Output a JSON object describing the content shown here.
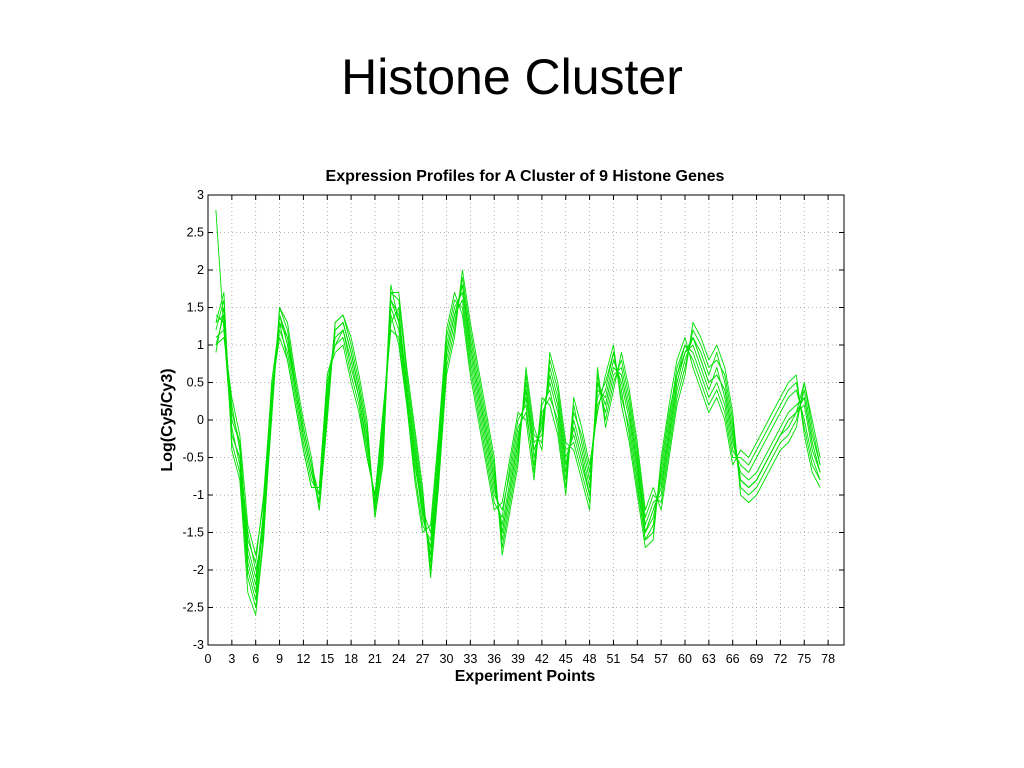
{
  "slide": {
    "title": "Histone Cluster"
  },
  "chart_data": {
    "type": "line",
    "title": "Expression Profiles for A Cluster of 9 Histone Genes",
    "xlabel": "Experiment Points",
    "ylabel": "Log(Cy5/Cy3)",
    "xlim": [
      0,
      80
    ],
    "ylim": [
      -3,
      3
    ],
    "xticks": [
      0,
      3,
      6,
      9,
      12,
      15,
      18,
      21,
      24,
      27,
      30,
      33,
      36,
      39,
      42,
      45,
      48,
      51,
      54,
      57,
      60,
      63,
      66,
      69,
      72,
      75,
      78
    ],
    "yticks": [
      -3,
      -2.5,
      -2,
      -1.5,
      -1,
      -0.5,
      0,
      0.5,
      1,
      1.5,
      2,
      2.5,
      3
    ],
    "grid": true,
    "line_color": "#00e000",
    "x": [
      1,
      2,
      3,
      4,
      5,
      6,
      7,
      8,
      9,
      10,
      11,
      12,
      13,
      14,
      15,
      16,
      17,
      18,
      19,
      20,
      21,
      22,
      23,
      24,
      25,
      26,
      27,
      28,
      29,
      30,
      31,
      32,
      33,
      34,
      35,
      36,
      37,
      38,
      39,
      40,
      41,
      42,
      43,
      44,
      45,
      46,
      47,
      48,
      49,
      50,
      51,
      52,
      53,
      54,
      55,
      56,
      57,
      58,
      59,
      60,
      61,
      62,
      63,
      64,
      65,
      66,
      67,
      68,
      69,
      70,
      71,
      72,
      73,
      74,
      75,
      76,
      77
    ],
    "series": [
      {
        "values": [
          2.8,
          1.2,
          -0.2,
          -0.5,
          -1.5,
          -2.0,
          -1.5,
          0.2,
          1.4,
          1.1,
          0.4,
          -0.2,
          -0.7,
          -1.1,
          0.3,
          1.2,
          1.3,
          0.9,
          0.4,
          -0.2,
          -1.2,
          -0.3,
          1.8,
          1.3,
          0.4,
          -0.4,
          -1.2,
          -1.8,
          -0.6,
          0.9,
          1.4,
          1.8,
          1.0,
          0.4,
          -0.2,
          -0.8,
          -1.5,
          -0.9,
          -0.3,
          0.4,
          -0.4,
          -0.1,
          0.6,
          0.2,
          -0.6,
          -0.1,
          -0.5,
          -1.0,
          0.5,
          0.2,
          0.7,
          0.6,
          0.1,
          -0.6,
          -1.5,
          -1.2,
          -0.9,
          -0.2,
          0.5,
          0.9,
          1.1,
          0.8,
          0.5,
          0.6,
          0.4,
          -0.2,
          -0.8,
          -0.9,
          -0.8,
          -0.6,
          -0.4,
          -0.2,
          0.0,
          0.1,
          0.2,
          -0.4,
          -0.7
        ]
      },
      {
        "values": [
          1.0,
          1.4,
          0.0,
          -0.3,
          -1.8,
          -2.2,
          -1.2,
          0.5,
          1.3,
          0.8,
          0.2,
          -0.4,
          -0.9,
          -0.9,
          0.6,
          1.0,
          1.1,
          0.6,
          0.2,
          -0.5,
          -1.0,
          0.0,
          1.4,
          1.0,
          0.2,
          -0.7,
          -1.4,
          -1.6,
          -0.3,
          1.1,
          1.6,
          1.5,
          0.7,
          0.1,
          -0.5,
          -1.1,
          -1.3,
          -0.6,
          0.0,
          0.2,
          -0.7,
          0.2,
          0.4,
          -0.1,
          -0.9,
          0.2,
          -0.3,
          -0.8,
          0.2,
          0.4,
          0.9,
          0.4,
          -0.2,
          -0.9,
          -1.6,
          -1.4,
          -0.7,
          0.0,
          0.7,
          1.0,
          0.9,
          0.6,
          0.3,
          0.5,
          0.2,
          -0.4,
          -0.6,
          -0.7,
          -0.5,
          -0.3,
          -0.1,
          0.1,
          0.3,
          0.4,
          0.0,
          -0.5,
          -0.8
        ]
      },
      {
        "values": [
          1.3,
          1.7,
          -0.4,
          -0.8,
          -2.3,
          -2.6,
          -1.6,
          0.1,
          1.5,
          1.2,
          0.5,
          -0.1,
          -0.6,
          -1.2,
          0.1,
          1.3,
          1.4,
          1.0,
          0.5,
          -0.1,
          -1.3,
          -0.5,
          1.7,
          1.6,
          0.6,
          -0.2,
          -1.0,
          -2.0,
          -0.8,
          0.7,
          1.2,
          1.9,
          1.2,
          0.6,
          0.0,
          -0.6,
          -1.7,
          -1.1,
          -0.5,
          0.6,
          -0.2,
          -0.3,
          0.8,
          0.4,
          -0.4,
          -0.3,
          -0.7,
          -1.1,
          0.6,
          0.0,
          0.5,
          0.8,
          0.3,
          -0.4,
          -1.3,
          -1.0,
          -1.1,
          -0.4,
          0.3,
          0.7,
          1.2,
          1.0,
          0.7,
          0.8,
          0.6,
          0.0,
          -0.9,
          -1.0,
          -0.9,
          -0.7,
          -0.5,
          -0.3,
          -0.2,
          0.0,
          0.4,
          -0.2,
          -0.6
        ]
      },
      {
        "values": [
          1.1,
          1.2,
          0.2,
          -0.4,
          -1.6,
          -1.9,
          -1.0,
          0.4,
          1.2,
          0.9,
          0.3,
          -0.3,
          -0.8,
          -1.0,
          0.4,
          1.1,
          1.2,
          0.8,
          0.3,
          -0.3,
          -1.1,
          -0.2,
          1.5,
          1.2,
          0.3,
          -0.5,
          -1.3,
          -1.7,
          -0.5,
          1.0,
          1.5,
          1.7,
          0.9,
          0.3,
          -0.3,
          -0.9,
          -1.4,
          -0.8,
          -0.2,
          0.3,
          -0.5,
          0.0,
          0.5,
          0.1,
          -0.7,
          0.0,
          -0.4,
          -0.9,
          0.4,
          0.3,
          0.8,
          0.5,
          0.0,
          -0.7,
          -1.5,
          -1.3,
          -0.8,
          -0.1,
          0.6,
          0.9,
          1.0,
          0.7,
          0.4,
          0.7,
          0.3,
          -0.3,
          -0.7,
          -0.8,
          -0.7,
          -0.5,
          -0.3,
          -0.1,
          0.1,
          0.2,
          0.3,
          -0.3,
          -0.7
        ]
      },
      {
        "values": [
          0.9,
          1.5,
          -0.1,
          -0.6,
          -2.0,
          -2.4,
          -1.3,
          0.3,
          1.4,
          1.0,
          0.4,
          -0.2,
          -0.7,
          -1.1,
          0.2,
          1.2,
          1.3,
          0.9,
          0.4,
          -0.2,
          -1.2,
          -0.4,
          1.6,
          1.4,
          0.5,
          -0.3,
          -1.1,
          -1.9,
          -0.7,
          0.8,
          1.3,
          1.8,
          1.1,
          0.5,
          -0.1,
          -0.7,
          -1.6,
          -1.0,
          -0.4,
          0.5,
          -0.3,
          -0.2,
          0.7,
          0.3,
          -0.5,
          -0.2,
          -0.6,
          -1.0,
          0.5,
          0.1,
          0.6,
          0.7,
          0.2,
          -0.5,
          -1.4,
          -1.1,
          -1.0,
          -0.3,
          0.4,
          0.8,
          1.1,
          0.9,
          0.6,
          0.9,
          0.5,
          -0.1,
          -0.8,
          -0.9,
          -0.8,
          -0.6,
          -0.4,
          -0.2,
          -0.1,
          0.1,
          0.5,
          -0.1,
          -0.6
        ]
      },
      {
        "values": [
          1.4,
          1.3,
          0.1,
          -0.3,
          -1.7,
          -2.1,
          -1.4,
          0.2,
          1.3,
          1.1,
          0.5,
          -0.1,
          -0.6,
          -1.0,
          0.5,
          1.0,
          1.2,
          0.7,
          0.3,
          -0.4,
          -1.1,
          -0.1,
          1.3,
          1.5,
          0.3,
          -0.6,
          -1.2,
          -1.5,
          -0.4,
          0.9,
          1.4,
          1.6,
          0.8,
          0.2,
          -0.4,
          -1.0,
          -1.2,
          -0.7,
          -0.1,
          0.1,
          -0.6,
          0.1,
          0.3,
          0.0,
          -0.8,
          0.1,
          -0.2,
          -0.7,
          0.3,
          0.5,
          0.9,
          0.3,
          -0.1,
          -0.8,
          -1.6,
          -1.5,
          -0.6,
          0.1,
          0.6,
          1.0,
          0.8,
          0.5,
          0.2,
          0.4,
          0.1,
          -0.5,
          -0.5,
          -0.6,
          -0.4,
          -0.2,
          0.0,
          0.2,
          0.4,
          0.5,
          -0.1,
          -0.6,
          -0.8
        ]
      },
      {
        "values": [
          1.2,
          1.6,
          -0.3,
          -0.7,
          -2.1,
          -2.5,
          -1.5,
          0.0,
          1.5,
          1.3,
          0.6,
          0.0,
          -0.5,
          -1.2,
          0.0,
          1.3,
          1.4,
          1.1,
          0.6,
          0.0,
          -1.3,
          -0.6,
          1.7,
          1.7,
          0.7,
          -0.1,
          -0.9,
          -2.1,
          -0.9,
          0.6,
          1.1,
          2.0,
          1.3,
          0.7,
          0.1,
          -0.5,
          -1.8,
          -1.2,
          -0.6,
          0.7,
          -0.1,
          -0.4,
          0.9,
          0.5,
          -0.3,
          -0.4,
          -0.8,
          -1.2,
          0.7,
          -0.1,
          0.4,
          0.9,
          0.4,
          -0.3,
          -1.2,
          -0.9,
          -1.2,
          -0.5,
          0.2,
          0.6,
          1.3,
          1.1,
          0.8,
          1.0,
          0.7,
          0.1,
          -1.0,
          -1.1,
          -1.0,
          -0.8,
          -0.6,
          -0.4,
          -0.3,
          -0.1,
          0.5,
          0.0,
          -0.5
        ]
      },
      {
        "values": [
          1.0,
          1.1,
          0.3,
          -0.2,
          -1.4,
          -1.8,
          -1.1,
          0.4,
          1.1,
          0.8,
          0.2,
          -0.4,
          -0.9,
          -0.9,
          0.6,
          0.9,
          1.0,
          0.5,
          0.1,
          -0.5,
          -1.0,
          0.1,
          1.2,
          1.1,
          0.2,
          -0.8,
          -1.5,
          -1.4,
          -0.2,
          1.2,
          1.7,
          1.4,
          0.6,
          0.0,
          -0.6,
          -1.2,
          -1.1,
          -0.5,
          0.1,
          0.0,
          -0.8,
          0.3,
          0.2,
          -0.2,
          -1.0,
          0.3,
          -0.1,
          -0.6,
          0.1,
          0.6,
          1.0,
          0.2,
          -0.3,
          -1.0,
          -1.7,
          -1.6,
          -0.5,
          0.2,
          0.8,
          1.1,
          0.7,
          0.4,
          0.1,
          0.3,
          0.0,
          -0.6,
          -0.4,
          -0.5,
          -0.3,
          -0.1,
          0.1,
          0.3,
          0.5,
          0.6,
          -0.2,
          -0.7,
          -0.9
        ]
      },
      {
        "values": [
          1.3,
          1.4,
          -0.2,
          -0.5,
          -1.9,
          -2.3,
          -1.3,
          0.2,
          1.4,
          1.0,
          0.4,
          -0.2,
          -0.7,
          -1.1,
          0.3,
          1.2,
          1.3,
          0.9,
          0.4,
          -0.2,
          -1.2,
          -0.3,
          1.6,
          1.3,
          0.4,
          -0.4,
          -1.2,
          -1.8,
          -0.6,
          0.9,
          1.4,
          1.8,
          1.0,
          0.4,
          -0.2,
          -0.8,
          -1.5,
          -0.9,
          -0.3,
          0.4,
          -0.4,
          -0.1,
          0.6,
          0.2,
          -0.6,
          -0.1,
          -0.5,
          -1.0,
          0.5,
          0.2,
          0.7,
          0.6,
          0.1,
          -0.6,
          -1.5,
          -1.2,
          -0.9,
          -0.2,
          0.5,
          0.9,
          1.1,
          0.8,
          0.5,
          0.6,
          0.4,
          -0.2,
          -0.8,
          -0.9,
          -0.8,
          -0.6,
          -0.4,
          -0.2,
          0.0,
          0.1,
          0.3,
          -0.3,
          -0.7
        ]
      }
    ]
  }
}
